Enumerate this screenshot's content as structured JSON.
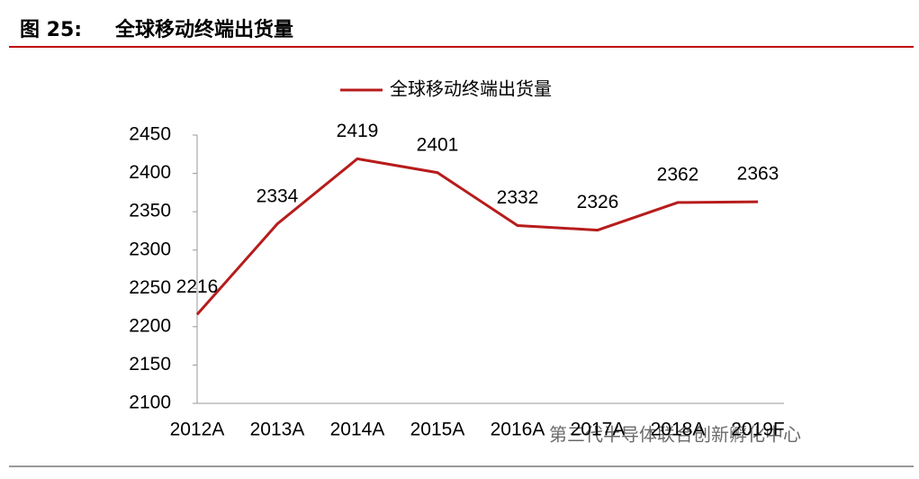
{
  "header": {
    "figure": "图 25:",
    "title": "全球移动终端出货量"
  },
  "chart_data": {
    "type": "line",
    "categories": [
      "2012A",
      "2013A",
      "2014A",
      "2015A",
      "2016A",
      "2017A",
      "2018A",
      "2019F"
    ],
    "series": [
      {
        "name": "全球移动终端出货量",
        "color": "#b71c1c",
        "values": [
          2216,
          2334,
          2419,
          2401,
          2332,
          2326,
          2362,
          2363
        ]
      }
    ],
    "ylim": [
      2100,
      2450
    ],
    "yticks": [
      2100,
      2150,
      2200,
      2250,
      2300,
      2350,
      2400,
      2450
    ],
    "legend": "top",
    "data_labels": true
  },
  "watermark": "第三代半导体联合创新孵化中心"
}
